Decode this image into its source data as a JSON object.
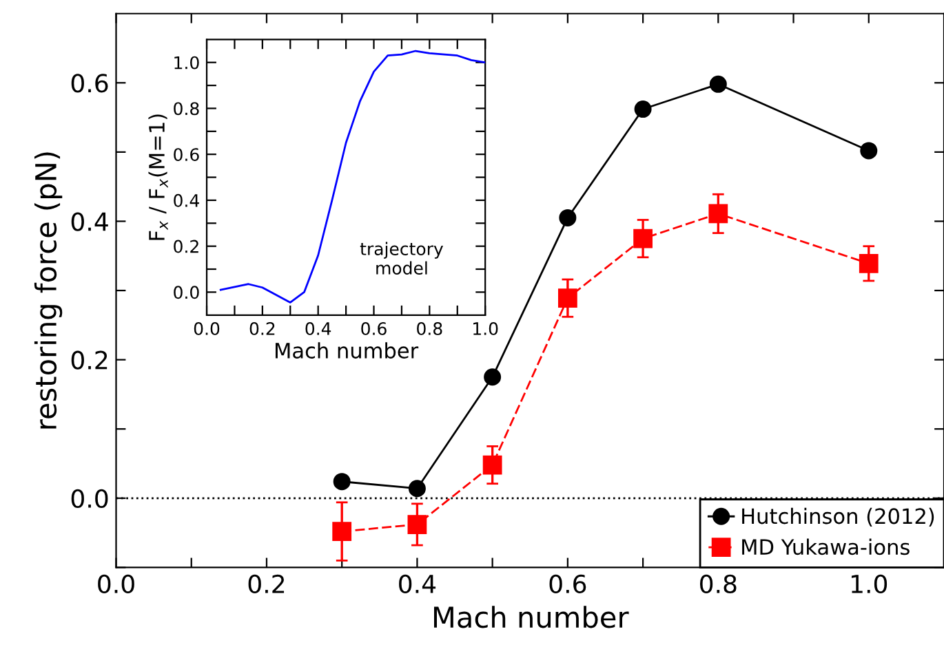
{
  "chart_data": [
    {
      "type": "line",
      "xlabel": "Mach number",
      "ylabel": "restoring force (pN)",
      "x": [
        0.3,
        0.4,
        0.5,
        0.6,
        0.7,
        0.8,
        1.0
      ],
      "series": [
        {
          "name": "Hutchinson (2012)",
          "color": "#000000",
          "marker": "circle",
          "line_style": "solid",
          "values": [
            0.024,
            0.014,
            0.175,
            0.405,
            0.562,
            0.598,
            0.502
          ]
        },
        {
          "name": "MD Yukawa-ions",
          "color": "#ff0000",
          "marker": "square",
          "line_style": "dashed",
          "values": [
            -0.048,
            -0.038,
            0.048,
            0.289,
            0.375,
            0.411,
            0.339
          ],
          "errors": [
            0.042,
            0.03,
            0.027,
            0.027,
            0.027,
            0.028,
            0.025
          ]
        }
      ],
      "xlim": [
        0,
        1.1
      ],
      "ylim": [
        -0.1,
        0.7
      ],
      "xticks": [
        {
          "value": 0,
          "label": "0.0"
        },
        {
          "value": 0.1,
          "label": null
        },
        0.2,
        {
          "value": 0.3,
          "label": null
        },
        0.4,
        {
          "value": 0.5,
          "label": null
        },
        0.6,
        {
          "value": 0.7,
          "label": null
        },
        0.8,
        {
          "value": 0.9,
          "label": null
        },
        {
          "value": 1,
          "label": "1.0"
        }
      ],
      "yticks": [
        {
          "value": -0.1,
          "label": null
        },
        {
          "value": 0,
          "label": "0.0"
        },
        {
          "value": 0.1,
          "label": null
        },
        0.2,
        {
          "value": 0.3,
          "label": null
        },
        0.4,
        {
          "value": 0.5,
          "label": null
        },
        0.6
      ],
      "ref_lines": [
        {
          "axis": "y",
          "value": 0,
          "color": "#000000",
          "line_style": "dotted"
        }
      ],
      "legend": "bottom right",
      "grid": false
    },
    {
      "type": "line",
      "xlabel": "Mach number",
      "ylabel": "F$_{x}$ / F$_{x}$(M=1)",
      "annotations": [
        "trajectory\nmodel"
      ],
      "x": [
        0.05,
        0.15,
        0.2,
        0.3,
        0.35,
        0.4,
        0.45,
        0.5,
        0.55,
        0.6,
        0.65,
        0.7,
        0.75,
        0.8,
        0.9,
        0.95,
        1.0
      ],
      "series": [
        {
          "color": "#0000ff",
          "marker": "none",
          "line_style": "solid",
          "values": [
            0.01,
            0.035,
            0.02,
            -0.045,
            0.0,
            0.16,
            0.4,
            0.65,
            0.83,
            0.96,
            1.03,
            1.035,
            1.05,
            1.04,
            1.03,
            1.01,
            1.0
          ]
        }
      ],
      "xlim": [
        0,
        1.0
      ],
      "ylim": [
        -0.1,
        1.1
      ],
      "xticks": [
        {
          "value": 0,
          "label": "0.0"
        },
        {
          "value": 0.1,
          "label": null
        },
        0.2,
        {
          "value": 0.3,
          "label": null
        },
        0.4,
        {
          "value": 0.5,
          "label": null
        },
        0.6,
        {
          "value": 0.7,
          "label": null
        },
        0.8,
        {
          "value": 0.9,
          "label": null
        },
        {
          "value": 1,
          "label": "1.0"
        }
      ],
      "yticks": [
        {
          "value": 0,
          "label": "0.0"
        },
        {
          "value": 0.1,
          "label": null
        },
        0.2,
        {
          "value": 0.3,
          "label": null
        },
        0.4,
        {
          "value": 0.5,
          "label": null
        },
        0.6,
        {
          "value": 0.7,
          "label": null
        },
        0.8,
        {
          "value": 0.9,
          "label": null
        },
        {
          "value": 1,
          "label": "1.0"
        }
      ],
      "grid": false
    }
  ]
}
